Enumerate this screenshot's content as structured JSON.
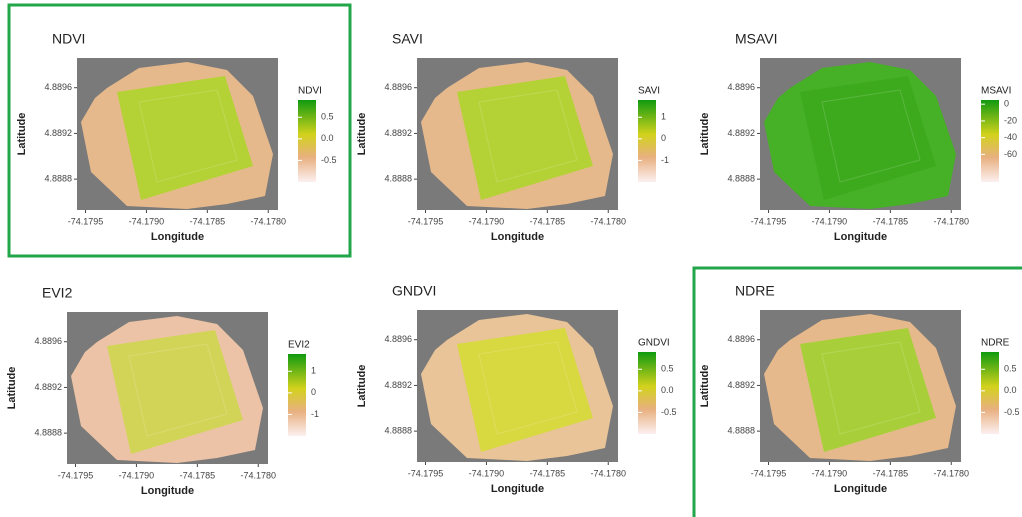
{
  "chart_data": [
    {
      "type": "raster",
      "title": "NDVI",
      "legend_title": "NDVI",
      "xlabel": "Longitude",
      "ylabel": "Latitude",
      "xlim": [
        -74.17957,
        -74.17792
      ],
      "xticks": [
        -74.1795,
        {
          "value": -74.179,
          "label": "-74.1790"
        },
        -74.1785,
        {
          "value": -74.178,
          "label": "-74.1780"
        }
      ],
      "ylim": [
        4.88853,
        4.88986
      ],
      "yticks": [
        4.8896,
        4.8892,
        4.8888
      ],
      "clim": [
        -1.0,
        0.9
      ],
      "cticks": [
        0.5,
        {
          "value": 0,
          "label": "0.0"
        },
        -0.5
      ],
      "color": "#b4d236",
      "edge_color": "#e6b98c"
    },
    {
      "type": "raster",
      "title": "SAVI",
      "legend_title": "SAVI",
      "xlabel": "Longitude",
      "ylabel": "Latitude",
      "xlim": [
        -74.17957,
        -74.17792
      ],
      "xticks": [
        -74.1795,
        {
          "value": -74.179,
          "label": "-74.1790"
        },
        -74.1785,
        {
          "value": -74.178,
          "label": "-74.1780"
        }
      ],
      "ylim": [
        4.88853,
        4.88986
      ],
      "yticks": [
        4.8896,
        4.8892,
        4.8888
      ],
      "clim": [
        -2.0,
        1.8
      ],
      "cticks": [
        1,
        0,
        -1
      ],
      "color": "#b4d236",
      "edge_color": "#e6b98c"
    },
    {
      "type": "raster",
      "title": "MSAVI",
      "legend_title": "MSAVI",
      "xlabel": "Longitude",
      "ylabel": "Latitude",
      "xlim": [
        -74.17957,
        -74.17792
      ],
      "xticks": [
        -74.1795,
        {
          "value": -74.179,
          "label": "-74.1790"
        },
        -74.1785,
        {
          "value": -74.178,
          "label": "-74.1780"
        }
      ],
      "ylim": [
        4.88853,
        4.88986
      ],
      "yticks": [
        4.8896,
        4.8892,
        4.8888
      ],
      "clim": [
        -93,
        5
      ],
      "cticks": [
        0,
        -20,
        -40,
        -60
      ],
      "color": "#3daa1e",
      "edge_color": "#46b026"
    },
    {
      "type": "raster",
      "title": "EVI2",
      "legend_title": "EVI2",
      "xlabel": "Longitude",
      "ylabel": "Latitude",
      "xlim": [
        -74.17957,
        -74.17792
      ],
      "xticks": [
        -74.1795,
        {
          "value": -74.179,
          "label": "-74.1790"
        },
        -74.1785,
        {
          "value": -74.178,
          "label": "-74.1780"
        }
      ],
      "ylim": [
        4.88853,
        4.88986
      ],
      "yticks": [
        4.8896,
        4.8892,
        4.8888
      ],
      "clim": [
        -2.0,
        1.8
      ],
      "cticks": [
        1,
        0,
        -1
      ],
      "color": "#d2d458",
      "edge_color": "#ecc3a6"
    },
    {
      "type": "raster",
      "title": "GNDVI",
      "legend_title": "GNDVI",
      "xlabel": "Longitude",
      "ylabel": "Latitude",
      "xlim": [
        -74.17957,
        -74.17792
      ],
      "xticks": [
        -74.1795,
        {
          "value": -74.179,
          "label": "-74.1790"
        },
        -74.1785,
        {
          "value": -74.178,
          "label": "-74.1780"
        }
      ],
      "ylim": [
        4.88853,
        4.88986
      ],
      "yticks": [
        4.8896,
        4.8892,
        4.8888
      ],
      "clim": [
        -1.0,
        0.9
      ],
      "cticks": [
        0.5,
        {
          "value": 0,
          "label": "0.0"
        },
        -0.5
      ],
      "color": "#d8d840",
      "edge_color": "#e8c498"
    },
    {
      "type": "raster",
      "title": "NDRE",
      "legend_title": "NDRE",
      "xlabel": "Longitude",
      "ylabel": "Latitude",
      "xlim": [
        -74.17957,
        -74.17792
      ],
      "xticks": [
        -74.1795,
        {
          "value": -74.179,
          "label": "-74.1790"
        },
        -74.1785,
        {
          "value": -74.178,
          "label": "-74.1780"
        }
      ],
      "ylim": [
        4.88853,
        4.88986
      ],
      "yticks": [
        4.8896,
        4.8892,
        4.8888
      ],
      "clim": [
        -1.0,
        0.9
      ],
      "cticks": [
        0.5,
        {
          "value": 0,
          "label": "0.0"
        },
        -0.5
      ],
      "color": "#a8cf3a",
      "edge_color": "#e6b98c"
    }
  ]
}
